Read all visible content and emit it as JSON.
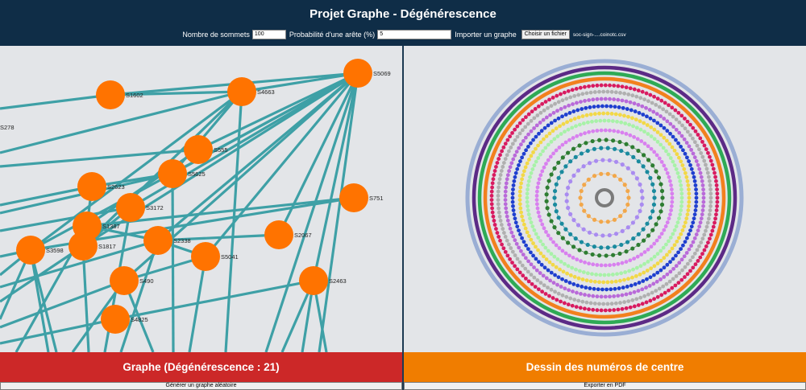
{
  "header": {
    "title": "Projet Graphe - Dégénérescence",
    "vertices_label": "Nombre de sommets",
    "vertices_value": "100",
    "prob_label": "Probabilité d'une arête (%)",
    "prob_value": "5",
    "import_label": "Importer un graphe",
    "file_button": "Choisir un fichier",
    "file_name": "soc-sign-....coinotc.csv"
  },
  "graph": {
    "edge_color": "#3ea0a6",
    "node_color": "#ff7300",
    "nodes": [
      {
        "id": "S5069",
        "label": "S5069"
      },
      {
        "id": "S1602",
        "label": "S1602"
      },
      {
        "id": "S4663",
        "label": "S4663"
      },
      {
        "id": "S278",
        "label": "S278"
      },
      {
        "id": "S555",
        "label": "S555"
      },
      {
        "id": "S5625",
        "label": "S5625"
      },
      {
        "id": "S2623",
        "label": "S2623"
      },
      {
        "id": "S751",
        "label": "S751"
      },
      {
        "id": "S3172",
        "label": "S3172"
      },
      {
        "id": "S1387",
        "label": "S1387"
      },
      {
        "id": "S1817",
        "label": "S1817"
      },
      {
        "id": "S2338",
        "label": "S2338"
      },
      {
        "id": "S2067",
        "label": "S2067"
      },
      {
        "id": "S3598",
        "label": "S3598"
      },
      {
        "id": "S5041",
        "label": "S5041"
      },
      {
        "id": "S490",
        "label": "S490"
      },
      {
        "id": "S2463",
        "label": "S2463"
      },
      {
        "id": "S4825",
        "label": "S4825"
      }
    ]
  },
  "core": {
    "ring_colors": [
      "#9aaed4",
      "#5c2a86",
      "#2eaa55",
      "#f2801e",
      "#d81b60",
      "#b0b0b0",
      "#b96ad9",
      "#1f3fcf",
      "#f2d847",
      "#a8f2a8",
      "#d880ef",
      "#2e7d32",
      "#1a8a9e",
      "#a98bf0",
      "#f2a74a",
      "#7a7a7a"
    ]
  },
  "panels": {
    "left_title": "Graphe (Dégénérescence : 21)",
    "right_title": "Dessin des numéros de centre",
    "left_button": "Générer un graphe aléatoire",
    "right_button": "Exporter en PDF"
  }
}
